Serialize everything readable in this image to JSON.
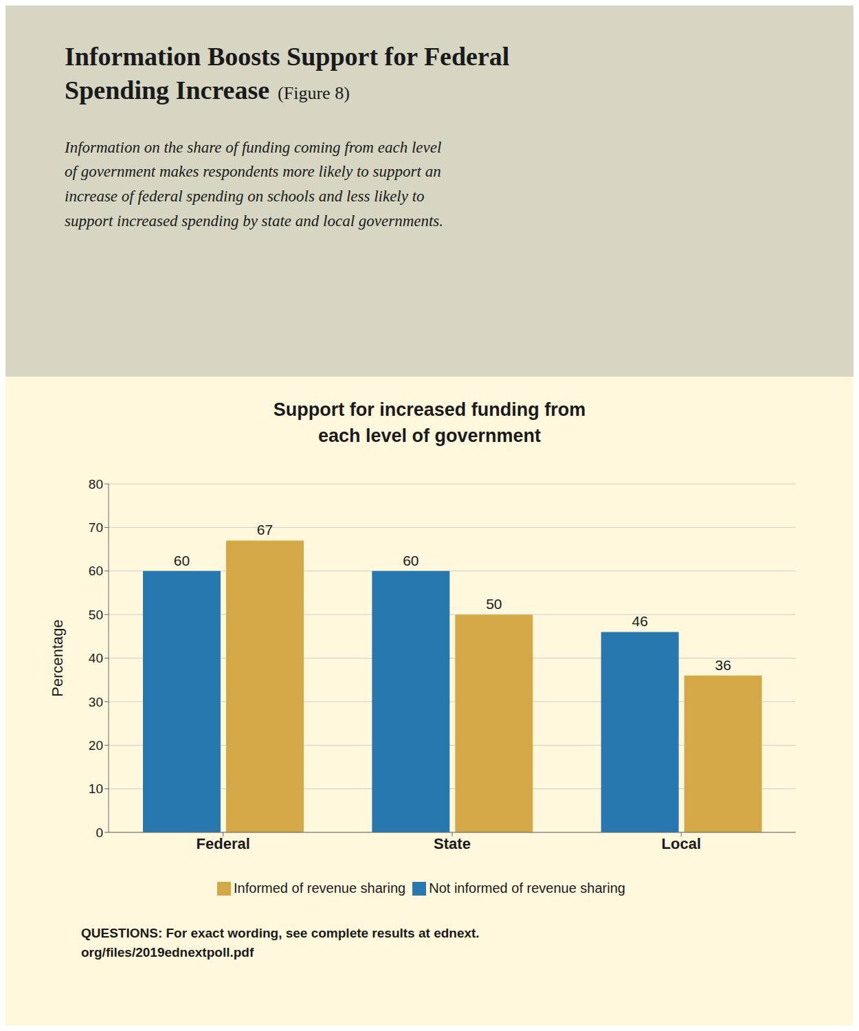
{
  "chart_data": {
    "type": "bar",
    "title": "Information Boosts Support for Federal\nSpending Increase",
    "subtitle": "Information on the share of funding coming from each level\nof government makes respondents more likely to support an\nincrease of federal spending on schools and less likely to\nsupport increased spending by state and local governments.",
    "annotations": [
      "(Figure 8)",
      "Support for increased funding from\neach level of government",
      "QUESTIONS: For exact wording, see complete results at ednext.\norg/files/2019ednextpoll.pdf"
    ],
    "categories": [
      "Federal",
      "State",
      "Local"
    ],
    "series": [
      {
        "name": "Not informed of revenue sharing",
        "color": "#2878B0",
        "values": [
          60,
          60,
          46
        ]
      },
      {
        "name": "Informed of revenue sharing",
        "color": "#D4A847",
        "values": [
          67,
          50,
          36
        ]
      }
    ],
    "ylabel": "Percentage",
    "ylim": [
      0,
      80
    ],
    "yticks": [
      0,
      10,
      20,
      30,
      40,
      50,
      60,
      70,
      80
    ],
    "grid": true,
    "data_labels": true,
    "legend": "bottom"
  }
}
